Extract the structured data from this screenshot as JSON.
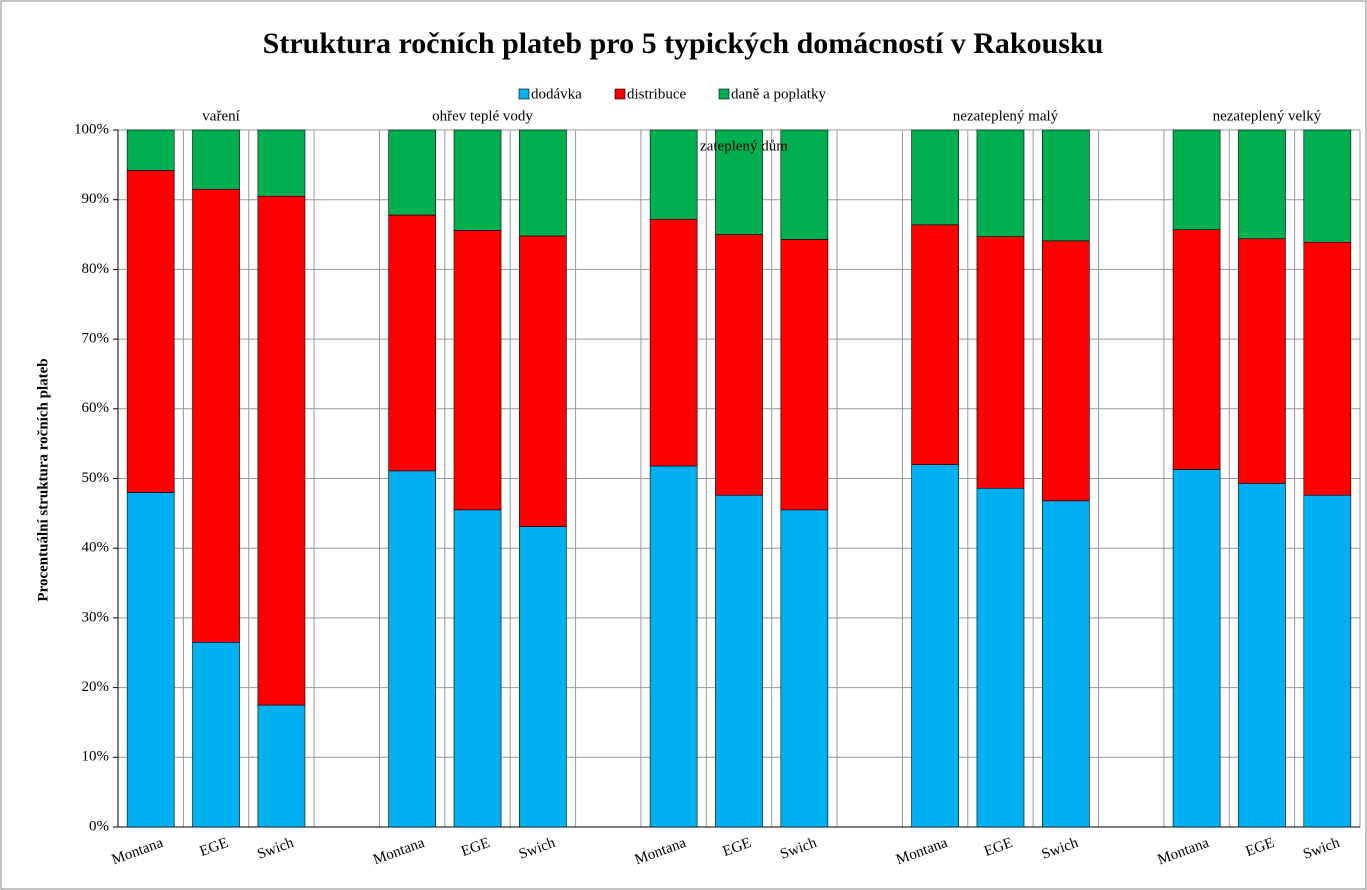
{
  "chart_data": {
    "type": "stacked_bar",
    "title": "Struktura ročních plateb pro 5 typických domácností v Rakousku",
    "y_label": "Procentuální struktura  ročních plateb",
    "categories": [
      "Montana",
      "EGE",
      "Swich",
      null,
      "Montana",
      "EGE",
      "Swich",
      null,
      "Montana",
      "EGE",
      "Swich",
      null,
      "Montana",
      "EGE",
      "Swich",
      null,
      "Montana",
      "EGE",
      "Swich"
    ],
    "annotations": [
      "vaření",
      "ohřev teplé vody",
      "zateplený dům",
      "nezateplený malý",
      "nezateplený velký"
    ],
    "series": [
      {
        "name": "dodávka",
        "color": "#00b0f0",
        "values": [
          48,
          26.5,
          17.5,
          null,
          51.1,
          45.5,
          43.1,
          null,
          51.8,
          47.6,
          45.5,
          null,
          52,
          48.6,
          46.8,
          null,
          51.3,
          49.3,
          47.6
        ]
      },
      {
        "name": "distribuce",
        "color": "#ff0000",
        "values": [
          46.2,
          65,
          73,
          null,
          36.7,
          40.1,
          41.7,
          null,
          35.4,
          37.4,
          38.8,
          null,
          34.4,
          36.1,
          37.3,
          null,
          34.4,
          35.1,
          36.3
        ]
      },
      {
        "name": "daně a poplatky",
        "color": "#00b050",
        "values": [
          5.8,
          8.5,
          9.5,
          null,
          12.2,
          14.4,
          15.2,
          null,
          12.8,
          15,
          15.7,
          null,
          13.6,
          15.3,
          15.9,
          null,
          14.3,
          15.6,
          16.1
        ]
      }
    ],
    "ylim": [
      0,
      100
    ],
    "yticks": [
      {
        "value": 0,
        "label": "0%"
      },
      {
        "value": 10,
        "label": "10%"
      },
      {
        "value": 20,
        "label": "20%"
      },
      {
        "value": 30,
        "label": "30%"
      },
      {
        "value": 40,
        "label": "40%"
      },
      {
        "value": 50,
        "label": "50%"
      },
      {
        "value": 60,
        "label": "60%"
      },
      {
        "value": 70,
        "label": "70%"
      },
      {
        "value": 80,
        "label": "80%"
      },
      {
        "value": 90,
        "label": "90%"
      },
      {
        "value": 100,
        "label": "100%"
      }
    ],
    "grid": true,
    "legend": "top"
  }
}
